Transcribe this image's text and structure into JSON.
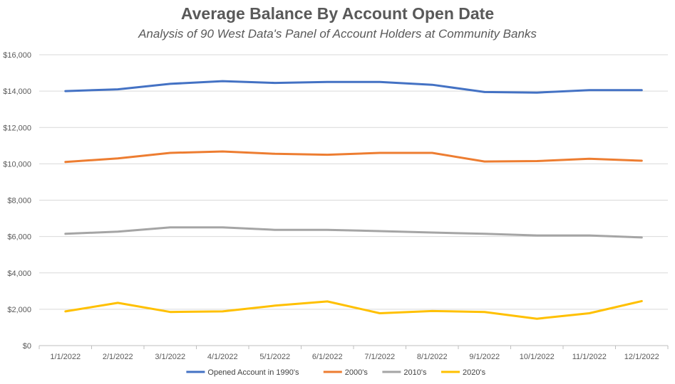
{
  "chart_data": {
    "type": "line",
    "title": "Average Balance By Account Open Date",
    "subtitle": "Analysis of 90 West Data's Panel of Account Holders at Community Banks",
    "xlabel": "",
    "ylabel": "",
    "ylim": [
      0,
      16000
    ],
    "y_ticks": [
      0,
      2000,
      4000,
      6000,
      8000,
      10000,
      12000,
      14000,
      16000
    ],
    "y_tick_labels": [
      "$0",
      "$2,000",
      "$4,000",
      "$6,000",
      "$8,000",
      "$10,000",
      "$12,000",
      "$14,000",
      "$16,000"
    ],
    "grid": true,
    "legend_position": "bottom",
    "categories": [
      "1/1/2022",
      "2/1/2022",
      "3/1/2022",
      "4/1/2022",
      "5/1/2022",
      "6/1/2022",
      "7/1/2022",
      "8/1/2022",
      "9/1/2022",
      "10/1/2022",
      "11/1/2022",
      "12/1/2022"
    ],
    "series": [
      {
        "name": "Opened Account in 1990's",
        "color": "#4472C4",
        "values": [
          14000,
          14100,
          14400,
          14550,
          14450,
          14500,
          14500,
          14350,
          13950,
          13920,
          14050,
          14050
        ]
      },
      {
        "name": "2000's",
        "color": "#ED7D31",
        "values": [
          10100,
          10300,
          10600,
          10680,
          10550,
          10500,
          10600,
          10600,
          10130,
          10150,
          10280,
          10170
        ]
      },
      {
        "name": "2010's",
        "color": "#A5A5A5",
        "values": [
          6150,
          6270,
          6500,
          6500,
          6370,
          6370,
          6300,
          6220,
          6150,
          6060,
          6060,
          5950
        ]
      },
      {
        "name": "2020's",
        "color": "#FFC000",
        "values": [
          1880,
          2350,
          1850,
          1880,
          2200,
          2430,
          1780,
          1900,
          1850,
          1480,
          1780,
          2450
        ]
      }
    ]
  }
}
